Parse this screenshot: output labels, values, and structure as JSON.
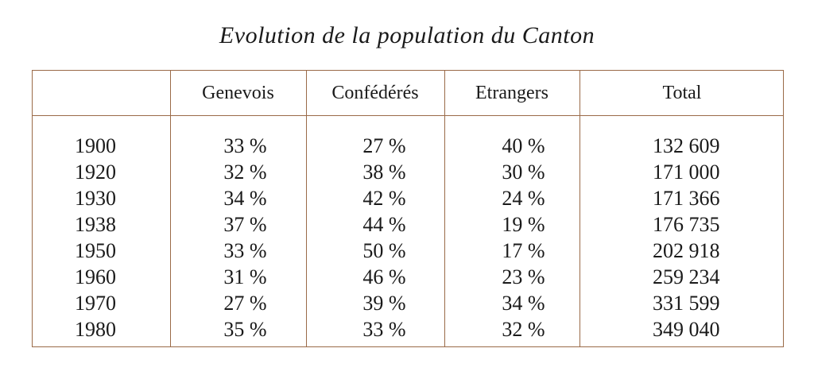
{
  "title": "Evolution de la population du Canton",
  "table": {
    "headers": [
      "",
      "Genevois",
      "Confédérés",
      "Etrangers",
      "Total"
    ],
    "rows": [
      {
        "year": "1900",
        "genevois": "33 %",
        "confederes": "27 %",
        "etrangers": "40 %",
        "total": "132 609"
      },
      {
        "year": "1920",
        "genevois": "32 %",
        "confederes": "38 %",
        "etrangers": "30 %",
        "total": "171 000"
      },
      {
        "year": "1930",
        "genevois": "34 %",
        "confederes": "42 %",
        "etrangers": "24 %",
        "total": "171 366"
      },
      {
        "year": "1938",
        "genevois": "37 %",
        "confederes": "44 %",
        "etrangers": "19 %",
        "total": "176 735"
      },
      {
        "year": "1950",
        "genevois": "33 %",
        "confederes": "50 %",
        "etrangers": "17 %",
        "total": "202 918"
      },
      {
        "year": "1960",
        "genevois": "31 %",
        "confederes": "46 %",
        "etrangers": "23 %",
        "total": "259 234"
      },
      {
        "year": "1970",
        "genevois": "27 %",
        "confederes": "39 %",
        "etrangers": "34 %",
        "total": "331 599"
      },
      {
        "year": "1980",
        "genevois": "35 %",
        "confederes": "33 %",
        "etrangers": "32 %",
        "total": "349 040"
      }
    ]
  },
  "colors": {
    "rule": "#9a6a48",
    "text": "#1a1a1a"
  }
}
